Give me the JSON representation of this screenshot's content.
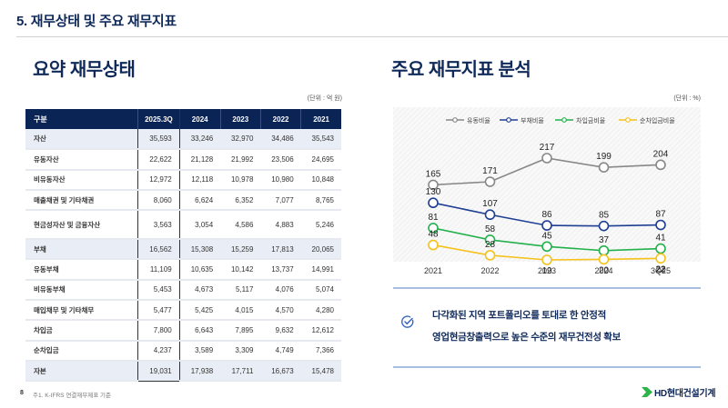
{
  "header": {
    "section_title": "5. 재무상태 및 주요 재무지표"
  },
  "left": {
    "title": "요약 재무상태",
    "unit": "(단위 : 억 원)",
    "table": {
      "columns": [
        "구분",
        "2025.3Q",
        "2024",
        "2023",
        "2022",
        "2021"
      ],
      "rows": [
        {
          "label": "자산",
          "values": [
            "35,593",
            "33,246",
            "32,970",
            "34,486",
            "35,543"
          ],
          "summary": true
        },
        {
          "label": "유동자산",
          "values": [
            "22,622",
            "21,128",
            "21,992",
            "23,506",
            "24,695"
          ]
        },
        {
          "label": "비유동자산",
          "values": [
            "12,972",
            "12,118",
            "10,978",
            "10,980",
            "10,848"
          ]
        },
        {
          "label": "매출채권 및 기타채권",
          "values": [
            "8,060",
            "6,624",
            "6,352",
            "7,077",
            "8,765"
          ]
        },
        {
          "label": "현금성자산 및 금융자산",
          "values": [
            "3,563",
            "3,054",
            "4,586",
            "4,883",
            "5,246"
          ],
          "tall": true
        },
        {
          "label": "부채",
          "values": [
            "16,562",
            "15,308",
            "15,259",
            "17,813",
            "20,065"
          ],
          "summary": true
        },
        {
          "label": "유동부채",
          "values": [
            "11,109",
            "10,635",
            "10,142",
            "13,737",
            "14,991"
          ]
        },
        {
          "label": "비유동부채",
          "values": [
            "5,453",
            "4,673",
            "5,117",
            "4,076",
            "5,074"
          ]
        },
        {
          "label": "매입채무 및 기타채무",
          "values": [
            "5,477",
            "5,425",
            "4,015",
            "4,570",
            "4,280"
          ]
        },
        {
          "label": "차입금",
          "values": [
            "7,800",
            "6,643",
            "7,895",
            "9,632",
            "12,612"
          ]
        },
        {
          "label": "순차입금",
          "values": [
            "4,237",
            "3,589",
            "3,309",
            "4,749",
            "7,366"
          ]
        },
        {
          "label": "자본",
          "values": [
            "19,031",
            "17,938",
            "17,711",
            "16,673",
            "15,478"
          ],
          "summary": true
        }
      ]
    }
  },
  "right": {
    "title": "주요 재무지표 분석",
    "unit": "(단위 : %)",
    "points": [
      "다각화된 지역 포트폴리오를 토대로 한 안정적",
      "영업현금창출력으로 높은 수준의 재무건전성 확보"
    ],
    "check_icon": "check-circle-icon"
  },
  "chart_data": {
    "type": "line",
    "title": "",
    "xlabel": "",
    "ylabel": "",
    "unit": "%",
    "categories": [
      "2021",
      "2022",
      "2023",
      "2024",
      "3Q25"
    ],
    "ylim": [
      0,
      240
    ],
    "grid": false,
    "legend_position": "top-center",
    "series": [
      {
        "name": "유동비율",
        "color": "#888888",
        "values": [
          165,
          171,
          217,
          199,
          204
        ]
      },
      {
        "name": "부채비율",
        "color": "#1f3f93",
        "values": [
          130,
          107,
          86,
          85,
          87
        ]
      },
      {
        "name": "차입금비율",
        "color": "#22b14c",
        "values": [
          81,
          58,
          45,
          37,
          41
        ]
      },
      {
        "name": "순차입금비율",
        "color": "#f5c21b",
        "values": [
          48,
          28,
          19,
          20,
          22
        ]
      }
    ]
  },
  "footer": {
    "page_number": "8",
    "note": "주1. K-IFRS 연결재무제표 기준",
    "logo_text": "HD현대건설기계"
  }
}
